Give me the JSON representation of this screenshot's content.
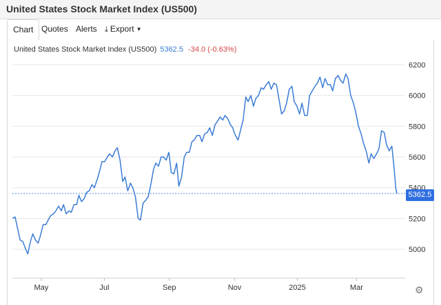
{
  "header": {
    "title": "United States Stock Market Index (US500)"
  },
  "tabs": [
    {
      "label": "Chart"
    },
    {
      "label": "Quotes"
    },
    {
      "label": "Alerts"
    },
    {
      "label": "Export"
    }
  ],
  "legend": {
    "name": "United States Stock Market Index (US500)",
    "last": "5362.5",
    "change": "-34.0 (-0.63%)"
  },
  "price_badge": "5362.5",
  "colors": {
    "line": "#3a7bd5",
    "badge": "#2f6fe0",
    "change_negative": "#d64545"
  },
  "icons": {
    "export": "download-icon",
    "settings": "gear-icon"
  },
  "chart_data": {
    "type": "line",
    "title": "",
    "xlabel": "",
    "ylabel": "",
    "ylim": [
      4900,
      6250
    ],
    "yticks": [
      5000,
      5200,
      5400,
      5600,
      5800,
      6000,
      6200
    ],
    "xticks": [
      {
        "label": "May",
        "x": 0.075
      },
      {
        "label": "Jul",
        "x": 0.239
      },
      {
        "label": "Sep",
        "x": 0.408
      },
      {
        "label": "Nov",
        "x": 0.578
      },
      {
        "label": "2025",
        "x": 0.741
      },
      {
        "label": "Mar",
        "x": 0.895
      }
    ],
    "grid": true,
    "last_value": 5362.5,
    "reference_value": 5396.5,
    "series": [
      {
        "values": [
          [
            0.0,
            5200
          ],
          [
            0.007,
            5210
          ],
          [
            0.013,
            5140
          ],
          [
            0.02,
            5060
          ],
          [
            0.027,
            5050
          ],
          [
            0.033,
            5010
          ],
          [
            0.04,
            4970
          ],
          [
            0.047,
            5050
          ],
          [
            0.053,
            5100
          ],
          [
            0.06,
            5060
          ],
          [
            0.067,
            5040
          ],
          [
            0.073,
            5090
          ],
          [
            0.08,
            5160
          ],
          [
            0.087,
            5160
          ],
          [
            0.093,
            5190
          ],
          [
            0.1,
            5220
          ],
          [
            0.107,
            5230
          ],
          [
            0.113,
            5250
          ],
          [
            0.12,
            5280
          ],
          [
            0.127,
            5250
          ],
          [
            0.133,
            5290
          ],
          [
            0.14,
            5230
          ],
          [
            0.147,
            5250
          ],
          [
            0.153,
            5240
          ],
          [
            0.16,
            5290
          ],
          [
            0.167,
            5290
          ],
          [
            0.173,
            5350
          ],
          [
            0.18,
            5310
          ],
          [
            0.187,
            5330
          ],
          [
            0.193,
            5370
          ],
          [
            0.2,
            5380
          ],
          [
            0.207,
            5420
          ],
          [
            0.213,
            5400
          ],
          [
            0.22,
            5450
          ],
          [
            0.227,
            5510
          ],
          [
            0.233,
            5570
          ],
          [
            0.24,
            5570
          ],
          [
            0.247,
            5600
          ],
          [
            0.253,
            5620
          ],
          [
            0.26,
            5600
          ],
          [
            0.267,
            5640
          ],
          [
            0.273,
            5660
          ],
          [
            0.28,
            5580
          ],
          [
            0.287,
            5440
          ],
          [
            0.293,
            5470
          ],
          [
            0.3,
            5380
          ],
          [
            0.307,
            5430
          ],
          [
            0.313,
            5400
          ],
          [
            0.32,
            5340
          ],
          [
            0.327,
            5200
          ],
          [
            0.333,
            5190
          ],
          [
            0.34,
            5300
          ],
          [
            0.347,
            5320
          ],
          [
            0.353,
            5340
          ],
          [
            0.36,
            5420
          ],
          [
            0.367,
            5520
          ],
          [
            0.373,
            5560
          ],
          [
            0.38,
            5540
          ],
          [
            0.387,
            5600
          ],
          [
            0.393,
            5600
          ],
          [
            0.4,
            5580
          ],
          [
            0.407,
            5630
          ],
          [
            0.413,
            5500
          ],
          [
            0.42,
            5490
          ],
          [
            0.427,
            5560
          ],
          [
            0.433,
            5410
          ],
          [
            0.44,
            5470
          ],
          [
            0.447,
            5600
          ],
          [
            0.453,
            5630
          ],
          [
            0.46,
            5630
          ],
          [
            0.467,
            5700
          ],
          [
            0.473,
            5710
          ],
          [
            0.48,
            5740
          ],
          [
            0.487,
            5740
          ],
          [
            0.493,
            5700
          ],
          [
            0.5,
            5750
          ],
          [
            0.507,
            5760
          ],
          [
            0.513,
            5790
          ],
          [
            0.52,
            5740
          ],
          [
            0.527,
            5810
          ],
          [
            0.533,
            5830
          ],
          [
            0.54,
            5860
          ],
          [
            0.547,
            5840
          ],
          [
            0.553,
            5870
          ],
          [
            0.56,
            5850
          ],
          [
            0.567,
            5810
          ],
          [
            0.573,
            5790
          ],
          [
            0.58,
            5740
          ],
          [
            0.587,
            5710
          ],
          [
            0.593,
            5770
          ],
          [
            0.6,
            5840
          ],
          [
            0.607,
            5990
          ],
          [
            0.613,
            5960
          ],
          [
            0.62,
            6000
          ],
          [
            0.627,
            5930
          ],
          [
            0.633,
            5980
          ],
          [
            0.64,
            6000
          ],
          [
            0.647,
            6050
          ],
          [
            0.653,
            6040
          ],
          [
            0.66,
            6070
          ],
          [
            0.667,
            6090
          ],
          [
            0.673,
            6040
          ],
          [
            0.68,
            6080
          ],
          [
            0.687,
            6070
          ],
          [
            0.693,
            5980
          ],
          [
            0.7,
            5880
          ],
          [
            0.707,
            5900
          ],
          [
            0.713,
            5950
          ],
          [
            0.72,
            6040
          ],
          [
            0.727,
            6060
          ],
          [
            0.733,
            5960
          ],
          [
            0.74,
            5930
          ],
          [
            0.747,
            5880
          ],
          [
            0.753,
            5950
          ],
          [
            0.76,
            5870
          ],
          [
            0.767,
            5870
          ],
          [
            0.773,
            6000
          ],
          [
            0.78,
            6030
          ],
          [
            0.787,
            6060
          ],
          [
            0.793,
            6080
          ],
          [
            0.8,
            6120
          ],
          [
            0.807,
            6050
          ],
          [
            0.813,
            6110
          ],
          [
            0.82,
            6070
          ],
          [
            0.827,
            6070
          ],
          [
            0.833,
            6030
          ],
          [
            0.84,
            6110
          ],
          [
            0.847,
            6130
          ],
          [
            0.853,
            6100
          ],
          [
            0.86,
            6080
          ],
          [
            0.867,
            6140
          ],
          [
            0.873,
            6110
          ],
          [
            0.88,
            6000
          ],
          [
            0.887,
            5950
          ],
          [
            0.893,
            5890
          ],
          [
            0.9,
            5800
          ],
          [
            0.907,
            5750
          ],
          [
            0.913,
            5690
          ],
          [
            0.92,
            5640
          ],
          [
            0.927,
            5560
          ],
          [
            0.933,
            5620
          ],
          [
            0.94,
            5590
          ],
          [
            0.947,
            5620
          ],
          [
            0.953,
            5650
          ],
          [
            0.96,
            5770
          ],
          [
            0.967,
            5760
          ],
          [
            0.973,
            5680
          ],
          [
            0.98,
            5640
          ],
          [
            0.987,
            5670
          ],
          [
            0.993,
            5520
          ],
          [
            0.997,
            5400
          ],
          [
            1.0,
            5362.5
          ]
        ]
      }
    ]
  }
}
